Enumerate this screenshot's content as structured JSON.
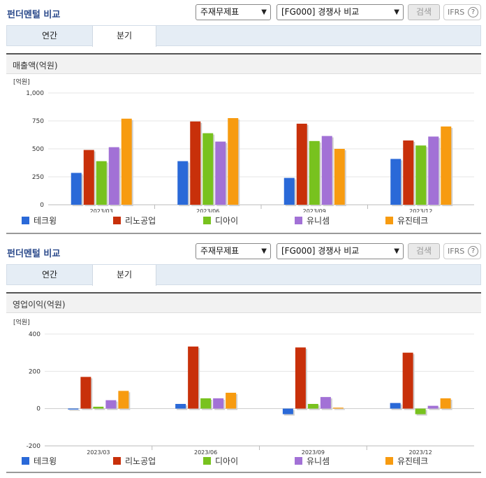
{
  "panels": [
    {
      "title": "펀더멘털 비교",
      "select_a": "주재무제표",
      "select_b": "[FG000] 경쟁사 비교",
      "search_label": "검색",
      "ifrs_label": "IFRS",
      "help_glyph": "?",
      "tabs": [
        "연간",
        "분기"
      ],
      "active_tab": "분기"
    },
    {
      "title": "펀더멘털 비교",
      "select_a": "주재무제표",
      "select_b": "[FG000] 경쟁사 비교",
      "search_label": "검색",
      "ifrs_label": "IFRS",
      "help_glyph": "?",
      "tabs": [
        "연간",
        "분기"
      ],
      "active_tab": "분기"
    }
  ],
  "colors": {
    "테크윙": "#2a69d8",
    "리노공업": "#c8300a",
    "디아이": "#78c21e",
    "유니셈": "#a271d6",
    "유진테크": "#f79b10"
  },
  "chart_data": [
    {
      "type": "bar",
      "title": "매출액(억원)",
      "unit_label": "[억원]",
      "categories": [
        "2023/03",
        "2023/06",
        "2023/09",
        "2023/12"
      ],
      "ylim": [
        0,
        1000
      ],
      "yticks": [
        "1,000",
        "750",
        "500",
        "250",
        "0"
      ],
      "ytick_values": [
        1000,
        750,
        500,
        250,
        0
      ],
      "series": [
        {
          "name": "테크윙",
          "values": [
            285,
            390,
            240,
            410
          ]
        },
        {
          "name": "리노공업",
          "values": [
            490,
            745,
            725,
            575
          ]
        },
        {
          "name": "디아이",
          "values": [
            390,
            640,
            570,
            530
          ]
        },
        {
          "name": "유니셈",
          "values": [
            515,
            565,
            615,
            610
          ]
        },
        {
          "name": "유진테크",
          "values": [
            770,
            775,
            500,
            700
          ]
        }
      ],
      "legend_position": "bottom",
      "grid": true
    },
    {
      "type": "bar",
      "title": "영업이익(억원)",
      "unit_label": "[억원]",
      "categories": [
        "2023/03",
        "2023/06",
        "2023/09",
        "2023/12"
      ],
      "ylim": [
        -200,
        400
      ],
      "yticks": [
        "400",
        "200",
        "0",
        "-200"
      ],
      "ytick_values": [
        400,
        200,
        0,
        -200
      ],
      "series": [
        {
          "name": "테크윙",
          "values": [
            -5,
            25,
            -30,
            30
          ]
        },
        {
          "name": "리노공업",
          "values": [
            170,
            333,
            328,
            300
          ]
        },
        {
          "name": "디아이",
          "values": [
            10,
            55,
            25,
            -30
          ]
        },
        {
          "name": "유니셈",
          "values": [
            45,
            55,
            62,
            15
          ]
        },
        {
          "name": "유진테크",
          "values": [
            95,
            85,
            5,
            55
          ]
        }
      ],
      "legend_position": "bottom",
      "grid": true
    }
  ]
}
